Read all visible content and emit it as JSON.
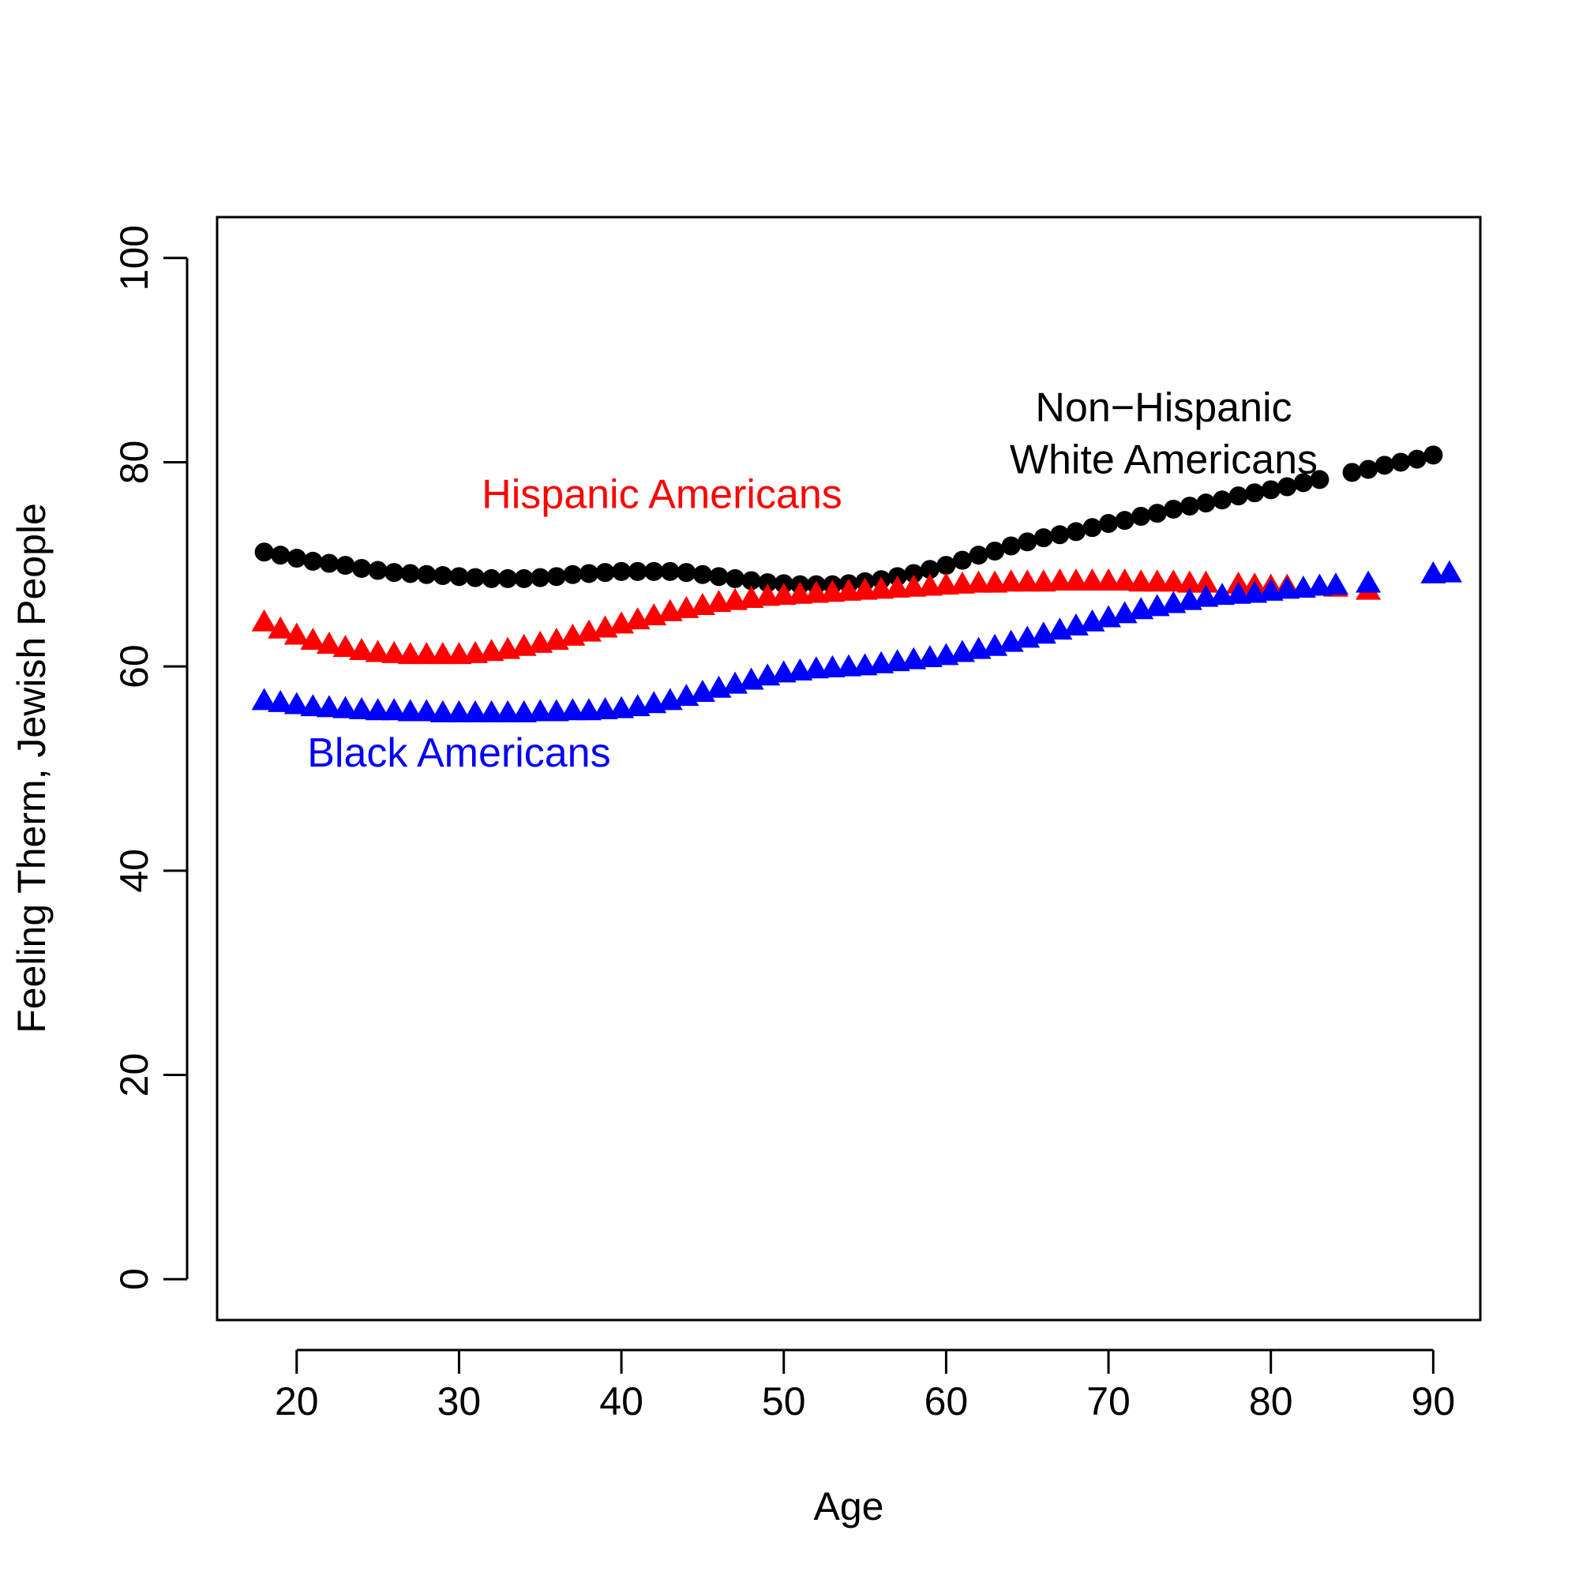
{
  "chart_data": {
    "type": "scatter",
    "title": "",
    "xlabel": "Age",
    "ylabel": "Feeling Therm, Jewish People",
    "xlim": [
      15.1,
      92.9
    ],
    "ylim": [
      -4,
      104
    ],
    "xticks": [
      20,
      30,
      40,
      50,
      60,
      70,
      80,
      90
    ],
    "yticks": [
      0,
      20,
      40,
      60,
      80,
      100
    ],
    "grid": false,
    "series": [
      {
        "name": "Non-Hispanic White Americans",
        "label_lines": [
          "Non−Hispanic",
          "White Americans"
        ],
        "label_position": {
          "x": 73.4,
          "y": 84.0
        },
        "color": "#000000",
        "marker": "circle",
        "x": [
          18,
          19,
          20,
          21,
          22,
          23,
          24,
          25,
          26,
          27,
          28,
          29,
          30,
          31,
          32,
          33,
          34,
          35,
          36,
          37,
          38,
          39,
          40,
          41,
          42,
          43,
          44,
          45,
          46,
          47,
          48,
          49,
          50,
          51,
          52,
          53,
          54,
          55,
          56,
          57,
          58,
          59,
          60,
          61,
          62,
          63,
          64,
          65,
          66,
          67,
          68,
          69,
          70,
          71,
          72,
          73,
          74,
          75,
          76,
          77,
          78,
          79,
          80,
          81,
          82,
          83,
          85,
          86,
          87,
          88,
          89,
          90
        ],
        "y": [
          71.2,
          70.9,
          70.6,
          70.3,
          70.1,
          69.9,
          69.6,
          69.4,
          69.2,
          69.1,
          69.0,
          68.9,
          68.8,
          68.7,
          68.6,
          68.6,
          68.6,
          68.7,
          68.8,
          69.0,
          69.1,
          69.2,
          69.3,
          69.3,
          69.3,
          69.3,
          69.2,
          69.0,
          68.8,
          68.6,
          68.4,
          68.2,
          68.1,
          68.0,
          68.0,
          68.0,
          68.1,
          68.3,
          68.5,
          68.8,
          69.1,
          69.5,
          69.9,
          70.4,
          70.9,
          71.3,
          71.8,
          72.2,
          72.6,
          72.9,
          73.2,
          73.6,
          74.0,
          74.3,
          74.7,
          75.0,
          75.4,
          75.7,
          76.0,
          76.3,
          76.7,
          77.0,
          77.3,
          77.6,
          78.0,
          78.3,
          79.0,
          79.3,
          79.7,
          80.0,
          80.3,
          80.7
        ]
      },
      {
        "name": "Hispanic Americans",
        "label_position": {
          "x": 42.5,
          "y": 75.5
        },
        "color": "#ff0000",
        "marker": "triangle",
        "x": [
          18,
          19,
          20,
          21,
          22,
          23,
          24,
          25,
          26,
          27,
          28,
          29,
          30,
          31,
          32,
          33,
          34,
          35,
          36,
          37,
          38,
          39,
          40,
          41,
          42,
          43,
          44,
          45,
          46,
          47,
          48,
          49,
          50,
          51,
          52,
          53,
          54,
          55,
          56,
          57,
          58,
          59,
          60,
          61,
          62,
          63,
          64,
          65,
          66,
          67,
          68,
          69,
          70,
          71,
          72,
          73,
          74,
          75,
          76,
          78,
          79,
          80,
          81,
          84,
          86
        ],
        "y": [
          64.3,
          63.6,
          63.0,
          62.5,
          62.1,
          61.8,
          61.5,
          61.3,
          61.2,
          61.1,
          61.1,
          61.1,
          61.1,
          61.2,
          61.4,
          61.6,
          61.9,
          62.2,
          62.5,
          62.9,
          63.3,
          63.7,
          64.1,
          64.5,
          64.9,
          65.3,
          65.6,
          65.9,
          66.2,
          66.4,
          66.6,
          66.8,
          66.9,
          67.0,
          67.1,
          67.2,
          67.3,
          67.4,
          67.5,
          67.6,
          67.7,
          67.8,
          67.9,
          68.0,
          68.1,
          68.1,
          68.2,
          68.2,
          68.2,
          68.3,
          68.3,
          68.3,
          68.3,
          68.3,
          68.2,
          68.2,
          68.2,
          68.1,
          68.1,
          68.0,
          67.9,
          67.8,
          67.8,
          67.7,
          67.4
        ]
      },
      {
        "name": "Black Americans",
        "label_position": {
          "x": 30.0,
          "y": 50.2
        },
        "color": "#0000ff",
        "marker": "triangle",
        "x": [
          18,
          19,
          20,
          21,
          22,
          23,
          24,
          25,
          26,
          27,
          28,
          29,
          30,
          31,
          32,
          33,
          34,
          35,
          36,
          37,
          38,
          39,
          40,
          41,
          42,
          43,
          44,
          45,
          46,
          47,
          48,
          49,
          50,
          51,
          52,
          53,
          54,
          55,
          56,
          57,
          58,
          59,
          60,
          61,
          62,
          63,
          64,
          65,
          66,
          67,
          68,
          69,
          70,
          71,
          72,
          73,
          74,
          75,
          76,
          77,
          78,
          79,
          80,
          81,
          82,
          83,
          84,
          86,
          90,
          91
        ],
        "y": [
          56.6,
          56.4,
          56.2,
          56.0,
          55.9,
          55.8,
          55.7,
          55.6,
          55.6,
          55.5,
          55.5,
          55.4,
          55.4,
          55.4,
          55.4,
          55.4,
          55.4,
          55.5,
          55.5,
          55.6,
          55.6,
          55.7,
          55.8,
          56.0,
          56.3,
          56.6,
          57.0,
          57.4,
          57.8,
          58.2,
          58.6,
          59.0,
          59.3,
          59.5,
          59.7,
          59.8,
          59.9,
          60.0,
          60.2,
          60.4,
          60.6,
          60.8,
          61.0,
          61.3,
          61.6,
          61.9,
          62.3,
          62.7,
          63.1,
          63.5,
          63.9,
          64.3,
          64.7,
          65.1,
          65.5,
          65.8,
          66.1,
          66.4,
          66.7,
          66.9,
          67.0,
          67.1,
          67.3,
          67.5,
          67.6,
          67.8,
          67.9,
          68.1,
          69.0,
          69.1
        ]
      }
    ]
  }
}
